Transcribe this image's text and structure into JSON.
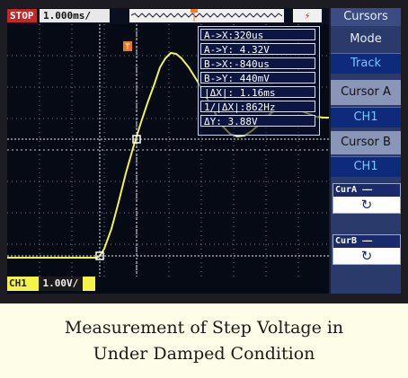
{
  "scope": {
    "status": "STOP",
    "timebase": "1.000ms/",
    "trigger_icon": "trigger-bolt-icon",
    "trigger_marker": "T",
    "readout": [
      "A->X:320us",
      "A->Y: 4.32V",
      "B->X:-840us",
      "B->Y: 440mV",
      "|ΔX|: 1.16ms",
      "1/|ΔX|:862Hz",
      "ΔY: 3.88V"
    ],
    "channel": "CH1",
    "channel_scale": "1.00V/"
  },
  "menu": {
    "title": "Cursors",
    "mode_label": "Mode",
    "mode_value": "Track",
    "cursor_a_label": "Cursor A",
    "cursor_a_value": "CH1",
    "cursor_b_label": "Cursor B",
    "cursor_b_value": "CH1",
    "cur_a_button": "CurA",
    "cur_b_button": "CurB"
  },
  "caption": {
    "line1": "Measurement of Step Voltage in",
    "line2": "Under Damped Condition"
  },
  "colors": {
    "trace": "#f2f24a",
    "cursor": "#e8f0ff",
    "grid": "#8a9ab0"
  }
}
